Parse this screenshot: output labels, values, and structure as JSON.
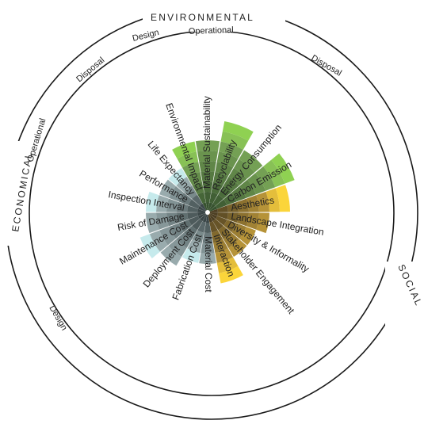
{
  "categories": {
    "environmental": "ENVIRONMENTAL",
    "economical": "ECONOMICAL",
    "social": "SOCIAL"
  },
  "sub_labels": {
    "env_design": "Design",
    "env_operational": "Operational",
    "env_disposal": "Disposal",
    "eco_disposal": "Disposal",
    "eco_operational": "Operational",
    "eco_design": "Design"
  },
  "criteria": [
    {
      "label": "Material Sustainability",
      "group": "environmental",
      "shades": 7,
      "outer": 0
    },
    {
      "label": "Recyclability",
      "group": "environmental",
      "shades": 7,
      "outer": 2
    },
    {
      "label": "Energy Consumption",
      "group": "environmental",
      "shades": 7,
      "outer": 0
    },
    {
      "label": "Carbon Emission",
      "group": "environmental",
      "shades": 7,
      "outer": 2
    },
    {
      "label": "Aesthetics",
      "group": "social",
      "shades": 6,
      "outer": 2
    },
    {
      "label": "Landscape Integration",
      "group": "social",
      "shades": 6,
      "outer": 0
    },
    {
      "label": "Diversity & Informality",
      "group": "social",
      "shades": 5,
      "outer": 0
    },
    {
      "label": "Stakeholder Engagement",
      "group": "social",
      "shades": 5,
      "outer": 0
    },
    {
      "label": "Interaction",
      "group": "social",
      "shades": 5,
      "outer": 2
    },
    {
      "label": "Material Cost",
      "group": "economical",
      "shades": 5,
      "outer": 0
    },
    {
      "label": "Fabrication Cost",
      "group": "economical",
      "shades": 4,
      "outer": 1
    },
    {
      "label": "Deployment Cost",
      "group": "economical",
      "shades": 6,
      "outer": 0
    },
    {
      "label": "Maintenance Cost",
      "group": "economical",
      "shades": 6,
      "outer": 1
    },
    {
      "label": "Risk of Damage",
      "group": "economical",
      "shades": 6,
      "outer": 0
    },
    {
      "label": "Inspection Interval",
      "group": "economical",
      "shades": 5,
      "outer": 1
    },
    {
      "label": "Performance",
      "group": "economical",
      "shades": 5,
      "outer": 0
    },
    {
      "label": "Life Expectancy",
      "group": "economical",
      "shades": 4,
      "outer": 1
    },
    {
      "label": "Environmental Impact",
      "group": "environmental",
      "shades": 5,
      "outer": 2
    }
  ],
  "colors": {
    "environmental_inner": "#37522f",
    "environmental_outer": "#7fae5b",
    "environmental_bright": "#8fd152",
    "economical_inner": "#3b4748",
    "economical_outer": "#a9bdbf",
    "economical_bright": "#c6eaec",
    "social_inner": "#4d3f22",
    "social_outer": "#c8a23c",
    "social_bright": "#fbd53a",
    "ring": "#1a1a1a"
  }
}
